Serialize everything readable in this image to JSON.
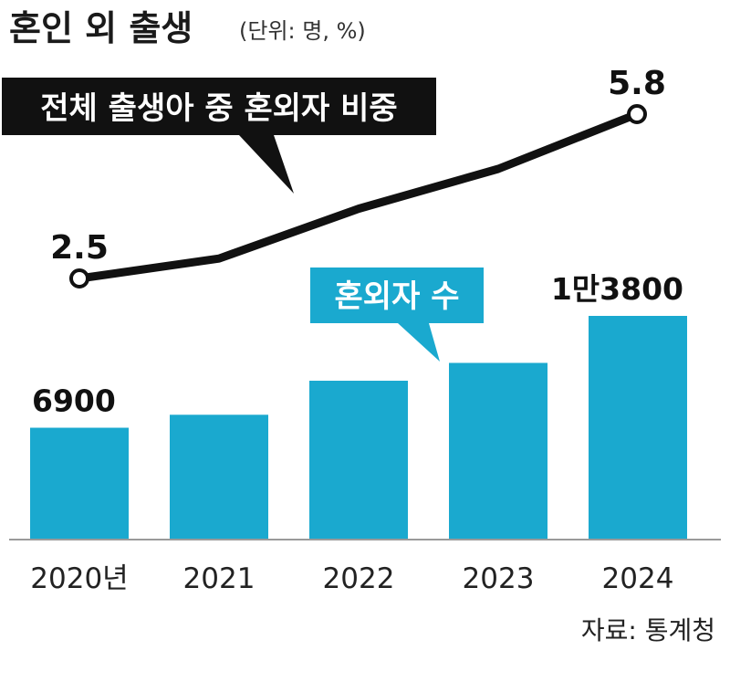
{
  "title": "혼인 외 출생",
  "unit": "(단위: 명, %)",
  "source": "자료: 통계청",
  "colors": {
    "bar": "#1aa9cf",
    "line": "#111111",
    "dark_label_bg": "#111111",
    "cyan_label_bg": "#1aa9cf",
    "axis": "#9a9a9a"
  },
  "chart_data": {
    "type": "bar",
    "categories": [
      "2020년",
      "2021",
      "2022",
      "2023",
      "2024"
    ],
    "series": [
      {
        "name": "혼외자 수",
        "type": "bar",
        "values": [
          6900,
          7700,
          9800,
          10900,
          13800
        ],
        "value_labels": [
          "6900",
          "",
          "",
          "",
          "1만3800"
        ]
      },
      {
        "name": "전체 출생아 중 혼외자 비중",
        "type": "line",
        "values": [
          2.5,
          2.9,
          3.9,
          4.7,
          5.8
        ],
        "value_labels": [
          "2.5",
          "",
          "",
          "",
          "5.8"
        ]
      }
    ]
  }
}
